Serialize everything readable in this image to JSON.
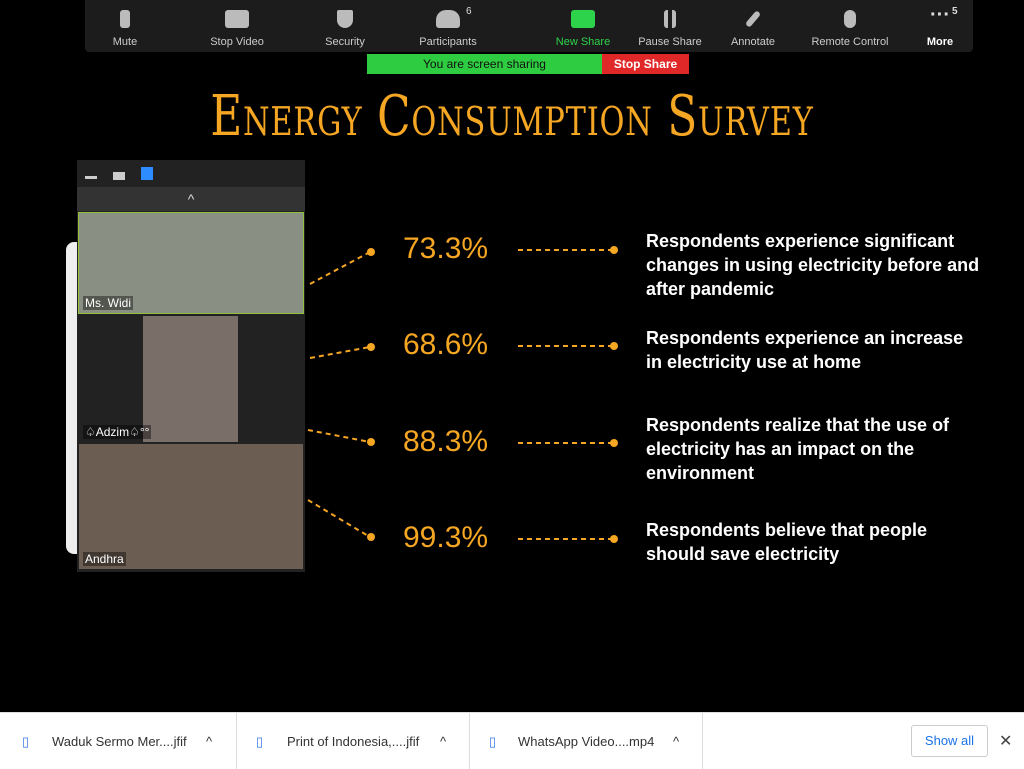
{
  "toolbar": {
    "buttons": [
      "Mute",
      "Stop Video",
      "Security",
      "Participants",
      "New Share",
      "Pause Share",
      "Annotate",
      "Remote Control",
      "More"
    ],
    "participants_count": 6,
    "more_count": 5
  },
  "share_banner": {
    "status": "You are screen sharing",
    "stop": "Stop Share"
  },
  "slide": {
    "title": "Energy Consumption Survey",
    "stats": [
      {
        "value": "73.3%",
        "text": "Respondents experience significant changes in using electricity before and after pandemic"
      },
      {
        "value": "68.6%",
        "text": "Respondents experience an increase in electricity use at home"
      },
      {
        "value": "88.3%",
        "text": "Respondents realize that the use of electricity has an impact on the environment"
      },
      {
        "value": "99.3%",
        "text": "Respondents believe that people should save electricity"
      }
    ]
  },
  "video_panel": {
    "participants": [
      "Ms. Widi",
      "♤Adzim♤°°",
      "Andhra"
    ]
  },
  "downloads": {
    "files": [
      "Waduk Sermo Mer....jfif",
      "Print of Indonesia,....jfif",
      "WhatsApp Video....mp4"
    ],
    "show_all": "Show all"
  }
}
